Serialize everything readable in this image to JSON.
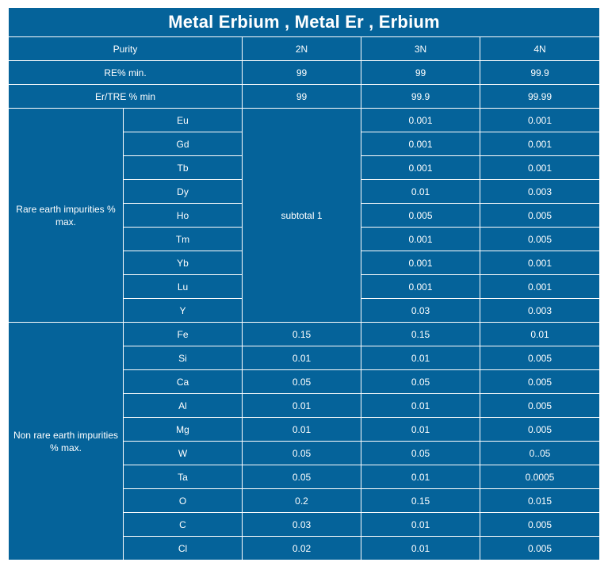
{
  "title": "Metal Erbium , Metal Er , Erbium",
  "header": {
    "label": "Purity",
    "grades": [
      "2N",
      "3N",
      "4N"
    ]
  },
  "summary_rows": [
    {
      "label": "RE% min.",
      "values": [
        "99",
        "99",
        "99.9"
      ]
    },
    {
      "label": "Er/TRE % min",
      "values": [
        "99",
        "99.9",
        "99.99"
      ]
    }
  ],
  "rare_earth": {
    "group_label": "Rare earth impurities % max.",
    "subtotal": "subtotal 1",
    "rows": [
      {
        "element": "Eu",
        "v3n": "0.001",
        "v4n": "0.001"
      },
      {
        "element": "Gd",
        "v3n": "0.001",
        "v4n": "0.001"
      },
      {
        "element": "Tb",
        "v3n": "0.001",
        "v4n": "0.001"
      },
      {
        "element": "Dy",
        "v3n": "0.01",
        "v4n": "0.003"
      },
      {
        "element": "Ho",
        "v3n": "0.005",
        "v4n": "0.005"
      },
      {
        "element": "Tm",
        "v3n": "0.001",
        "v4n": "0.005"
      },
      {
        "element": "Yb",
        "v3n": "0.001",
        "v4n": "0.001"
      },
      {
        "element": "Lu",
        "v3n": "0.001",
        "v4n": "0.001"
      },
      {
        "element": "Y",
        "v3n": "0.03",
        "v4n": "0.003"
      }
    ]
  },
  "non_rare_earth": {
    "group_label": "Non rare earth impurities % max.",
    "rows": [
      {
        "element": "Fe",
        "values": [
          "0.15",
          "0.15",
          "0.01"
        ]
      },
      {
        "element": "Si",
        "values": [
          "0.01",
          "0.01",
          "0.005"
        ]
      },
      {
        "element": "Ca",
        "values": [
          "0.05",
          "0.05",
          "0.005"
        ]
      },
      {
        "element": "Al",
        "values": [
          "0.01",
          "0.01",
          "0.005"
        ]
      },
      {
        "element": "Mg",
        "values": [
          "0.01",
          "0.01",
          "0.005"
        ]
      },
      {
        "element": "W",
        "values": [
          "0.05",
          "0.05",
          "0..05"
        ]
      },
      {
        "element": "Ta",
        "values": [
          "0.05",
          "0.01",
          "0.0005"
        ]
      },
      {
        "element": "O",
        "values": [
          "0.2",
          "0.15",
          "0.015"
        ]
      },
      {
        "element": "C",
        "values": [
          "0.03",
          "0.01",
          "0.005"
        ]
      },
      {
        "element": "Cl",
        "values": [
          "0.02",
          "0.01",
          "0.005"
        ]
      }
    ]
  },
  "colors": {
    "cell_bg": "#05639a",
    "border": "#ffffff",
    "text": "#ffffff"
  }
}
